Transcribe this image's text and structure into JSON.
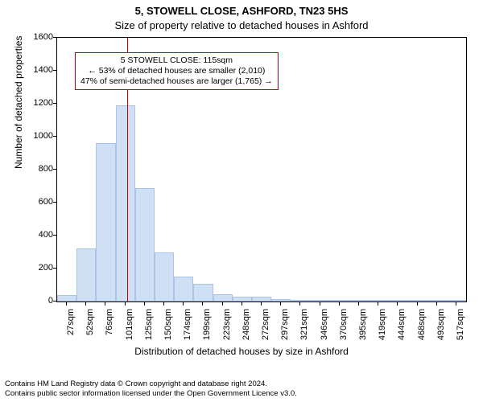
{
  "chart": {
    "type": "histogram",
    "title_main": "5, STOWELL CLOSE, ASHFORD, TN23 5HS",
    "title_sub": "Size of property relative to detached houses in Ashford",
    "y_label": "Number of detached properties",
    "x_label": "Distribution of detached houses by size in Ashford",
    "background_color": "#ffffff",
    "axis_color": "#000000",
    "title_fontsize": 13,
    "label_fontsize": 12,
    "tick_fontsize": 11,
    "ylim": [
      0,
      1600
    ],
    "ytick_step": 200,
    "x_categories": [
      "27sqm",
      "52sqm",
      "76sqm",
      "101sqm",
      "125sqm",
      "150sqm",
      "174sqm",
      "199sqm",
      "223sqm",
      "248sqm",
      "272sqm",
      "297sqm",
      "321sqm",
      "346sqm",
      "370sqm",
      "395sqm",
      "419sqm",
      "444sqm",
      "468sqm",
      "493sqm",
      "517sqm"
    ],
    "values": [
      40,
      320,
      960,
      1190,
      690,
      300,
      150,
      105,
      45,
      30,
      30,
      15,
      10,
      10,
      10,
      5,
      5,
      5,
      5,
      5,
      5
    ],
    "bar_fill": "#cfe0f5",
    "bar_stroke": "#a9c4e8",
    "bar_width": 1.0,
    "marker": {
      "position_index": 3.6,
      "color": "#cc0000",
      "annotation_lines": [
        "5 STOWELL CLOSE: 115sqm",
        "← 53% of detached houses are smaller (2,010)",
        "47% of semi-detached houses are larger (1,765) →"
      ],
      "annotation_border": "#cc0000",
      "annotation_bg": "#ffffff"
    }
  },
  "footer": {
    "line1": "Contains HM Land Registry data © Crown copyright and database right 2024.",
    "line2": "Contains public sector information licensed under the Open Government Licence v3.0."
  }
}
